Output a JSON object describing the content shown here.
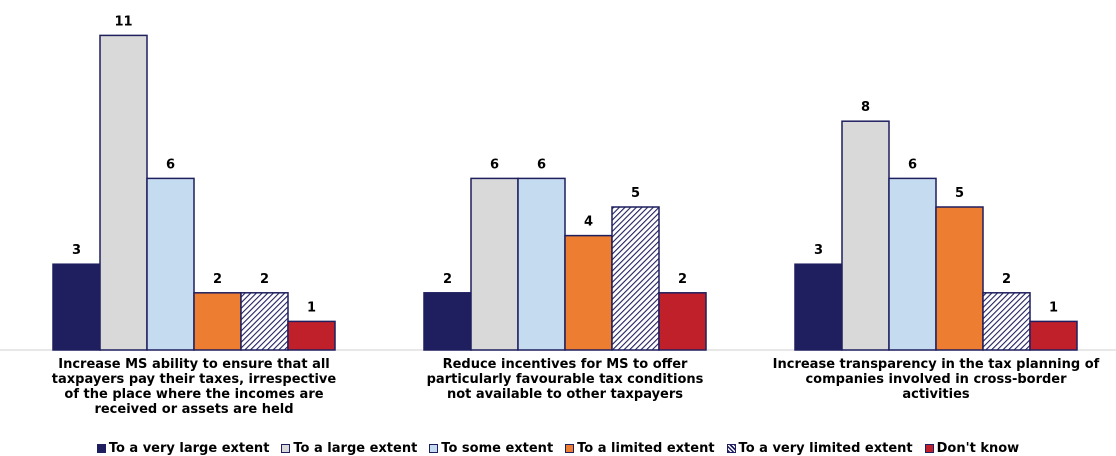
{
  "chart_data": {
    "type": "bar",
    "categories": [
      "Increase MS ability to ensure that all taxpayers pay their taxes, irrespective of the place where the incomes are received or assets are held",
      "Reduce incentives for MS to offer particularly favourable tax conditions not available to other taxpayers",
      "Increase transparency in the tax planning of companies involved in cross-border activities"
    ],
    "series": [
      {
        "name": "To a very large extent",
        "values": [
          3,
          2,
          3
        ],
        "color": "#1f1f5f",
        "pattern": "solid"
      },
      {
        "name": "To a large extent",
        "values": [
          11,
          6,
          8
        ],
        "color": "#d9d9d9",
        "pattern": "solid"
      },
      {
        "name": "To some extent",
        "values": [
          6,
          6,
          6
        ],
        "color": "#c5dcf0",
        "pattern": "solid"
      },
      {
        "name": "To a limited extent",
        "values": [
          2,
          4,
          5
        ],
        "color": "#ed7d31",
        "pattern": "solid"
      },
      {
        "name": "To a very limited extent",
        "values": [
          2,
          5,
          2
        ],
        "color": "#1f1f5f",
        "pattern": "hatch"
      },
      {
        "name": "Don't know",
        "values": [
          1,
          2,
          1
        ],
        "color": "#c0202a",
        "pattern": "solid"
      }
    ],
    "ylim": [
      0,
      11
    ],
    "grid": false,
    "legend_position": "bottom",
    "data_labels": true
  }
}
